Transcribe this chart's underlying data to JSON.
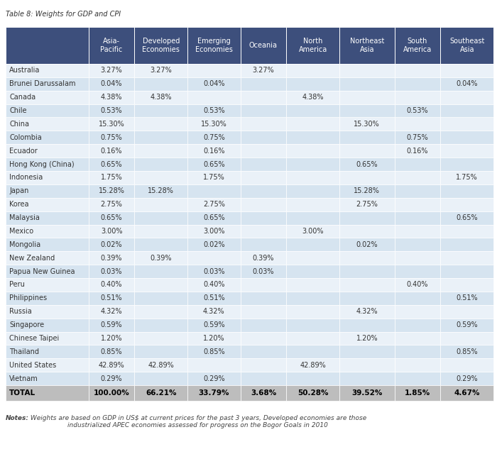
{
  "title": "Table 8: Weights for GDP and CPI",
  "columns": [
    "",
    "Asia-\nPacific",
    "Developed\nEconomies",
    "Emerging\nEconomies",
    "Oceania",
    "North\nAmerica",
    "Northeast\nAsia",
    "South\nAmerica",
    "Southeast\nAsia"
  ],
  "rows": [
    [
      "Australia",
      "3.27%",
      "3.27%",
      "",
      "3.27%",
      "",
      "",
      "",
      ""
    ],
    [
      "Brunei Darussalam",
      "0.04%",
      "",
      "0.04%",
      "",
      "",
      "",
      "",
      "0.04%"
    ],
    [
      "Canada",
      "4.38%",
      "4.38%",
      "",
      "",
      "4.38%",
      "",
      "",
      ""
    ],
    [
      "Chile",
      "0.53%",
      "",
      "0.53%",
      "",
      "",
      "",
      "0.53%",
      ""
    ],
    [
      "China",
      "15.30%",
      "",
      "15.30%",
      "",
      "",
      "15.30%",
      "",
      ""
    ],
    [
      "Colombia",
      "0.75%",
      "",
      "0.75%",
      "",
      "",
      "",
      "0.75%",
      ""
    ],
    [
      "Ecuador",
      "0.16%",
      "",
      "0.16%",
      "",
      "",
      "",
      "0.16%",
      ""
    ],
    [
      "Hong Kong (China)",
      "0.65%",
      "",
      "0.65%",
      "",
      "",
      "0.65%",
      "",
      ""
    ],
    [
      "Indonesia",
      "1.75%",
      "",
      "1.75%",
      "",
      "",
      "",
      "",
      "1.75%"
    ],
    [
      "Japan",
      "15.28%",
      "15.28%",
      "",
      "",
      "",
      "15.28%",
      "",
      ""
    ],
    [
      "Korea",
      "2.75%",
      "",
      "2.75%",
      "",
      "",
      "2.75%",
      "",
      ""
    ],
    [
      "Malaysia",
      "0.65%",
      "",
      "0.65%",
      "",
      "",
      "",
      "",
      "0.65%"
    ],
    [
      "Mexico",
      "3.00%",
      "",
      "3.00%",
      "",
      "3.00%",
      "",
      "",
      ""
    ],
    [
      "Mongolia",
      "0.02%",
      "",
      "0.02%",
      "",
      "",
      "0.02%",
      "",
      ""
    ],
    [
      "New Zealand",
      "0.39%",
      "0.39%",
      "",
      "0.39%",
      "",
      "",
      "",
      ""
    ],
    [
      "Papua New Guinea",
      "0.03%",
      "",
      "0.03%",
      "0.03%",
      "",
      "",
      "",
      ""
    ],
    [
      "Peru",
      "0.40%",
      "",
      "0.40%",
      "",
      "",
      "",
      "0.40%",
      ""
    ],
    [
      "Philippines",
      "0.51%",
      "",
      "0.51%",
      "",
      "",
      "",
      "",
      "0.51%"
    ],
    [
      "Russia",
      "4.32%",
      "",
      "4.32%",
      "",
      "",
      "4.32%",
      "",
      ""
    ],
    [
      "Singapore",
      "0.59%",
      "",
      "0.59%",
      "",
      "",
      "",
      "",
      "0.59%"
    ],
    [
      "Chinese Taipei",
      "1.20%",
      "",
      "1.20%",
      "",
      "",
      "1.20%",
      "",
      ""
    ],
    [
      "Thailand",
      "0.85%",
      "",
      "0.85%",
      "",
      "",
      "",
      "",
      "0.85%"
    ],
    [
      "United States",
      "42.89%",
      "42.89%",
      "",
      "",
      "42.89%",
      "",
      "",
      ""
    ],
    [
      "Vietnam",
      "0.29%",
      "",
      "0.29%",
      "",
      "",
      "",
      "",
      "0.29%"
    ]
  ],
  "total_row": [
    "TOTAL",
    "100.00%",
    "66.21%",
    "33.79%",
    "3.68%",
    "50.28%",
    "39.52%",
    "1.85%",
    "4.67%"
  ],
  "notes_bold": "Notes:",
  "notes_regular": " Weights are based on GDP in US$ at current prices for the past 3 years, Developed economies are those\nindustrialized APEC economies assessed for progress on the Bogor Goals in 2010",
  "header_bg": "#3d4f7c",
  "header_fg": "#ffffff",
  "row_light_bg": "#eaf1f8",
  "row_dark_bg": "#d6e4f0",
  "total_bg": "#bdbdbd",
  "total_fg": "#000000",
  "title_color": "#333333",
  "col_widths": [
    1.8,
    1.0,
    1.15,
    1.15,
    1.0,
    1.15,
    1.2,
    1.0,
    1.15
  ]
}
